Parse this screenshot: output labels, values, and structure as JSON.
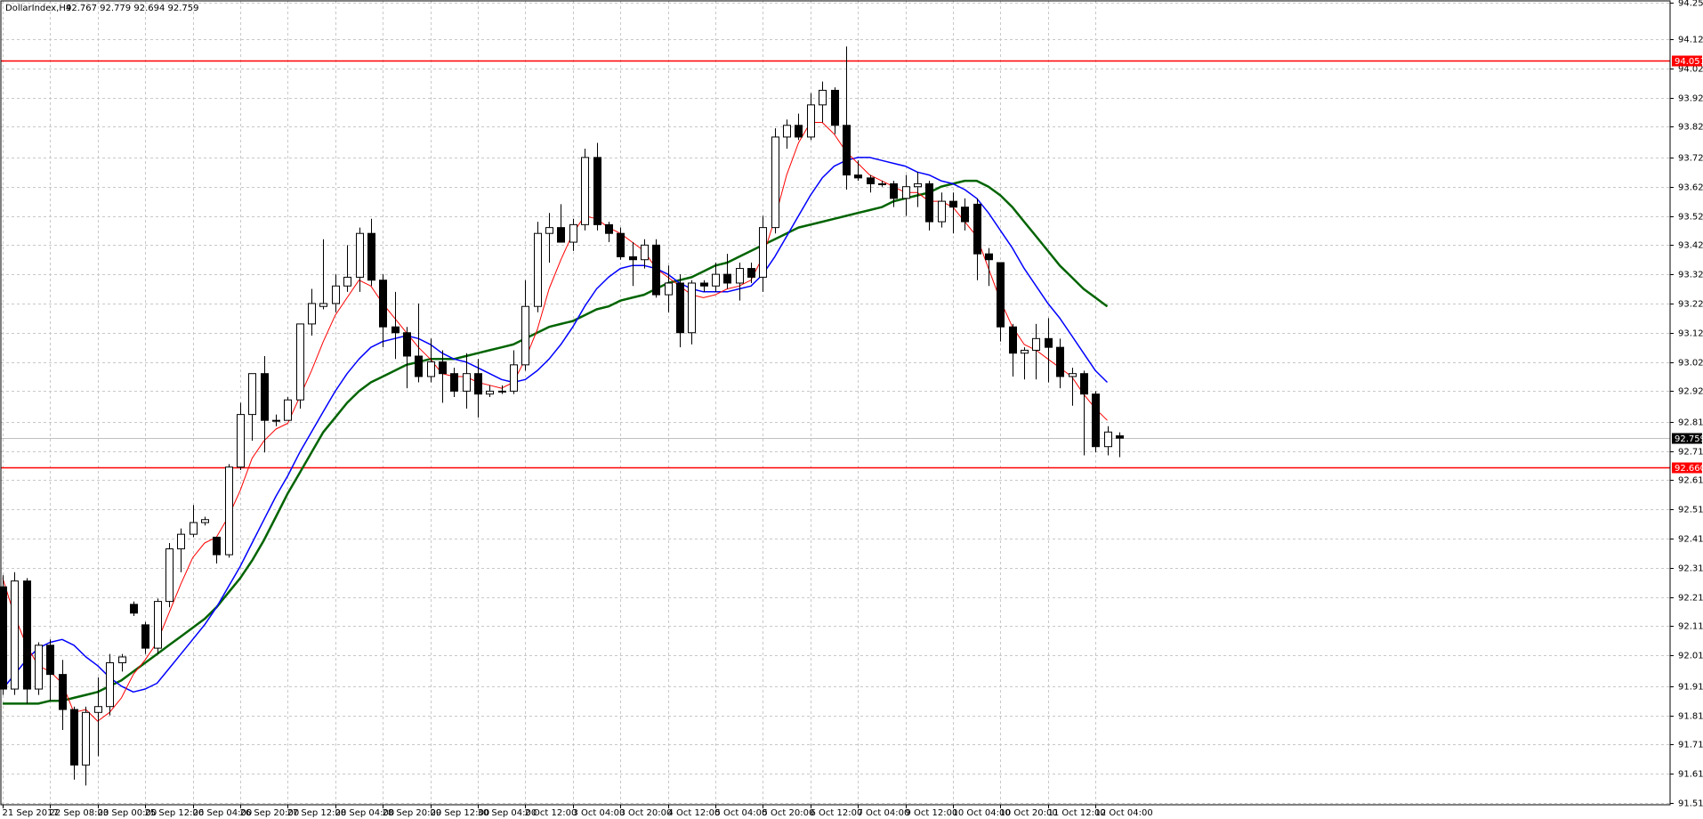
{
  "header": {
    "symbol": "DollarIndex,H4",
    "ohlc": "92.767 92.779 92.694 92.759"
  },
  "colors": {
    "background": "#ffffff",
    "grid": "#c8c8c8",
    "bull_body": "#ffffff",
    "bear_body": "#000000",
    "candle_outline": "#000000",
    "ma_fast": "#ff0000",
    "ma_mid": "#0000ff",
    "ma_slow": "#006400",
    "hline": "#ff0000",
    "current_line": "#c0c0c0"
  },
  "chart_data": {
    "type": "candlestick",
    "symbol": "DollarIndex",
    "timeframe": "H4",
    "ylim": [
      91.51,
      94.25
    ],
    "grid": true,
    "y_ticks": [
      "94.250",
      "94.125",
      "94.025",
      "93.925",
      "93.825",
      "93.720",
      "93.620",
      "93.520",
      "93.420",
      "93.320",
      "93.220",
      "93.120",
      "93.020",
      "92.920",
      "92.815",
      "92.715",
      "92.615",
      "92.515",
      "92.415",
      "92.315",
      "92.215",
      "92.115",
      "92.015",
      "91.910",
      "91.810",
      "91.710",
      "91.610",
      "91.510"
    ],
    "x_ticks": [
      {
        "index": 0,
        "label": "21 Sep 2017"
      },
      {
        "index": 4,
        "label": "22 Sep 08:00"
      },
      {
        "index": 8,
        "label": "23 Sep 00:00"
      },
      {
        "index": 12,
        "label": "25 Sep 12:00"
      },
      {
        "index": 16,
        "label": "26 Sep 04:00"
      },
      {
        "index": 20,
        "label": "26 Sep 20:00"
      },
      {
        "index": 24,
        "label": "27 Sep 12:00"
      },
      {
        "index": 28,
        "label": "28 Sep 04:00"
      },
      {
        "index": 32,
        "label": "28 Sep 20:00"
      },
      {
        "index": 36,
        "label": "29 Sep 12:00"
      },
      {
        "index": 40,
        "label": "30 Sep 04:00"
      },
      {
        "index": 44,
        "label": "2 Oct 12:00"
      },
      {
        "index": 48,
        "label": "3 Oct 04:00"
      },
      {
        "index": 52,
        "label": "3 Oct 20:00"
      },
      {
        "index": 56,
        "label": "4 Oct 12:00"
      },
      {
        "index": 60,
        "label": "5 Oct 04:00"
      },
      {
        "index": 64,
        "label": "5 Oct 20:00"
      },
      {
        "index": 68,
        "label": "6 Oct 12:00"
      },
      {
        "index": 72,
        "label": "7 Oct 04:00"
      },
      {
        "index": 76,
        "label": "9 Oct 12:00"
      },
      {
        "index": 80,
        "label": "10 Oct 04:00"
      },
      {
        "index": 84,
        "label": "10 Oct 20:00"
      },
      {
        "index": 88,
        "label": "11 Oct 12:00"
      },
      {
        "index": 92,
        "label": "12 Oct 04:00"
      }
    ],
    "candles": [
      [
        92.25,
        92.29,
        91.88,
        91.9
      ],
      [
        91.9,
        92.3,
        91.88,
        92.27
      ],
      [
        92.27,
        92.28,
        91.85,
        91.9
      ],
      [
        91.9,
        92.06,
        91.88,
        92.05
      ],
      [
        92.05,
        92.07,
        91.86,
        91.95
      ],
      [
        91.95,
        92.0,
        91.76,
        91.83
      ],
      [
        91.83,
        91.84,
        91.59,
        91.64
      ],
      [
        91.64,
        91.84,
        91.57,
        91.82
      ],
      [
        91.82,
        91.94,
        91.67,
        91.84
      ],
      [
        91.84,
        92.02,
        91.81,
        91.99
      ],
      [
        91.99,
        92.02,
        91.96,
        92.01
      ],
      [
        92.19,
        92.2,
        92.15,
        92.16
      ],
      [
        92.12,
        92.13,
        92.02,
        92.04
      ],
      [
        92.04,
        92.21,
        92.02,
        92.2
      ],
      [
        92.2,
        92.4,
        92.18,
        92.38
      ],
      [
        92.38,
        92.45,
        92.3,
        92.43
      ],
      [
        92.43,
        92.53,
        92.42,
        92.47
      ],
      [
        92.47,
        92.49,
        92.46,
        92.48
      ],
      [
        92.42,
        92.42,
        92.33,
        92.36
      ],
      [
        92.36,
        92.67,
        92.35,
        92.66
      ],
      [
        92.66,
        92.88,
        92.65,
        92.84
      ],
      [
        92.84,
        92.96,
        92.75,
        92.98
      ],
      [
        92.98,
        93.04,
        92.71,
        92.82
      ],
      [
        92.82,
        92.84,
        92.8,
        92.82
      ],
      [
        92.82,
        92.9,
        92.82,
        92.89
      ],
      [
        92.89,
        93.15,
        92.86,
        93.15
      ],
      [
        93.15,
        93.27,
        93.11,
        93.22
      ],
      [
        93.21,
        93.44,
        93.2,
        93.22
      ],
      [
        93.22,
        93.32,
        93.19,
        93.28
      ],
      [
        93.28,
        93.42,
        93.26,
        93.31
      ],
      [
        93.31,
        93.48,
        93.26,
        93.46
      ],
      [
        93.46,
        93.51,
        93.28,
        93.3
      ],
      [
        93.3,
        93.32,
        93.07,
        93.14
      ],
      [
        93.14,
        93.26,
        93.03,
        93.12
      ],
      [
        93.12,
        93.14,
        92.93,
        93.04
      ],
      [
        93.04,
        93.22,
        92.95,
        92.97
      ],
      [
        92.97,
        93.1,
        92.95,
        93.02
      ],
      [
        93.02,
        93.06,
        92.88,
        92.98
      ],
      [
        92.98,
        93.0,
        92.9,
        92.92
      ],
      [
        92.92,
        93.05,
        92.86,
        92.98
      ],
      [
        92.98,
        93.03,
        92.83,
        92.91
      ],
      [
        92.91,
        92.94,
        92.9,
        92.92
      ],
      [
        92.92,
        92.94,
        92.91,
        92.92
      ],
      [
        92.92,
        93.06,
        92.91,
        93.01
      ],
      [
        93.01,
        93.3,
        92.99,
        93.21
      ],
      [
        93.21,
        93.5,
        93.19,
        93.46
      ],
      [
        93.46,
        93.53,
        93.36,
        93.48
      ],
      [
        93.48,
        93.56,
        93.44,
        93.43
      ],
      [
        93.43,
        93.51,
        93.4,
        93.49
      ],
      [
        93.49,
        93.75,
        93.47,
        93.72
      ],
      [
        93.72,
        93.77,
        93.47,
        93.49
      ],
      [
        93.49,
        93.5,
        93.43,
        93.46
      ],
      [
        93.46,
        93.48,
        93.37,
        93.38
      ],
      [
        93.38,
        93.43,
        93.28,
        93.37
      ],
      [
        93.37,
        93.44,
        93.34,
        93.42
      ],
      [
        93.42,
        93.44,
        93.24,
        93.25
      ],
      [
        93.25,
        93.35,
        93.19,
        93.29
      ],
      [
        93.29,
        93.32,
        93.07,
        93.12
      ],
      [
        93.12,
        93.3,
        93.08,
        93.29
      ],
      [
        93.29,
        93.3,
        93.26,
        93.28
      ],
      [
        93.28,
        93.36,
        93.26,
        93.32
      ],
      [
        93.32,
        93.39,
        93.27,
        93.29
      ],
      [
        93.29,
        93.36,
        93.23,
        93.34
      ],
      [
        93.34,
        93.36,
        93.29,
        93.31
      ],
      [
        93.31,
        93.52,
        93.26,
        93.48
      ],
      [
        93.48,
        93.82,
        93.46,
        93.79
      ],
      [
        93.79,
        93.85,
        93.75,
        93.83
      ],
      [
        93.83,
        93.87,
        93.78,
        93.79
      ],
      [
        93.79,
        93.94,
        93.78,
        93.9
      ],
      [
        93.9,
        93.98,
        93.84,
        93.95
      ],
      [
        93.95,
        93.96,
        93.8,
        93.83
      ],
      [
        93.83,
        94.1,
        93.61,
        93.66
      ],
      [
        93.66,
        93.71,
        93.64,
        93.65
      ],
      [
        93.65,
        93.66,
        93.6,
        93.63
      ],
      [
        93.63,
        93.64,
        93.62,
        93.63
      ],
      [
        93.63,
        93.64,
        93.55,
        93.58
      ],
      [
        93.58,
        93.66,
        93.52,
        93.62
      ],
      [
        93.62,
        93.67,
        93.55,
        93.63
      ],
      [
        93.63,
        93.64,
        93.47,
        93.5
      ],
      [
        93.5,
        93.6,
        93.48,
        93.57
      ],
      [
        93.57,
        93.6,
        93.46,
        93.55
      ],
      [
        93.55,
        93.58,
        93.47,
        93.5
      ],
      [
        93.56,
        93.58,
        93.3,
        93.39
      ],
      [
        93.39,
        93.41,
        93.28,
        93.37
      ],
      [
        93.36,
        93.36,
        93.09,
        93.14
      ],
      [
        93.14,
        93.15,
        92.97,
        93.05
      ],
      [
        93.05,
        93.07,
        92.96,
        93.06
      ],
      [
        93.06,
        93.15,
        92.96,
        93.1
      ],
      [
        93.1,
        93.17,
        92.95,
        93.07
      ],
      [
        93.07,
        93.1,
        92.93,
        92.97
      ],
      [
        92.97,
        93.0,
        92.87,
        92.98
      ],
      [
        92.98,
        92.99,
        92.7,
        92.91
      ],
      [
        92.91,
        92.92,
        92.71,
        92.73
      ],
      [
        92.73,
        92.8,
        92.7,
        92.78
      ],
      [
        92.767,
        92.779,
        92.694,
        92.759
      ]
    ],
    "ma_fast_values": [
      92.28,
      92.15,
      92.05,
      91.98,
      91.96,
      91.92,
      91.82,
      91.83,
      91.79,
      91.82,
      91.87,
      91.95,
      92.0,
      92.06,
      92.16,
      92.26,
      92.35,
      92.4,
      92.42,
      92.49,
      92.58,
      92.69,
      92.75,
      92.79,
      92.81,
      92.9,
      92.99,
      93.09,
      93.18,
      93.24,
      93.3,
      93.28,
      93.22,
      93.17,
      93.12,
      93.07,
      93.03,
      92.98,
      92.97,
      92.97,
      92.95,
      92.94,
      92.93,
      92.95,
      93.03,
      93.13,
      93.27,
      93.37,
      93.46,
      93.52,
      93.51,
      93.48,
      93.46,
      93.43,
      93.4,
      93.34,
      93.31,
      93.28,
      93.25,
      93.24,
      93.25,
      93.27,
      93.28,
      93.3,
      93.38,
      93.51,
      93.66,
      93.77,
      93.84,
      93.84,
      93.8,
      93.74,
      93.7,
      93.66,
      93.64,
      93.62,
      93.6,
      93.6,
      93.57,
      93.57,
      93.55,
      93.5,
      93.45,
      93.34,
      93.23,
      93.14,
      93.08,
      93.06,
      93.03,
      93.0,
      92.97,
      92.91,
      92.86,
      92.82
    ],
    "ma_mid_values": [
      91.9,
      91.95,
      92.0,
      92.04,
      92.06,
      92.07,
      92.05,
      92.01,
      91.98,
      91.94,
      91.91,
      91.89,
      91.9,
      91.92,
      91.97,
      92.02,
      92.07,
      92.12,
      92.18,
      92.25,
      92.32,
      92.4,
      92.48,
      92.56,
      92.63,
      92.71,
      92.78,
      92.85,
      92.92,
      92.98,
      93.03,
      93.07,
      93.09,
      93.1,
      93.11,
      93.1,
      93.08,
      93.05,
      93.03,
      93.02,
      93.0,
      92.98,
      92.96,
      92.95,
      92.96,
      92.99,
      93.03,
      93.08,
      93.14,
      93.21,
      93.27,
      93.31,
      93.34,
      93.35,
      93.35,
      93.34,
      93.32,
      93.29,
      93.27,
      93.26,
      93.26,
      93.26,
      93.27,
      93.28,
      93.32,
      93.38,
      93.45,
      93.52,
      93.59,
      93.65,
      93.69,
      93.71,
      93.72,
      93.72,
      93.71,
      93.7,
      93.69,
      93.67,
      93.66,
      93.64,
      93.63,
      93.61,
      93.58,
      93.53,
      93.47,
      93.41,
      93.34,
      93.28,
      93.22,
      93.17,
      93.11,
      93.05,
      92.99,
      92.95
    ],
    "ma_slow_values": [
      91.85,
      91.85,
      91.85,
      91.85,
      91.86,
      91.86,
      91.87,
      91.88,
      91.89,
      91.91,
      91.93,
      91.96,
      91.99,
      92.02,
      92.05,
      92.08,
      92.11,
      92.14,
      92.18,
      92.23,
      92.28,
      92.34,
      92.41,
      92.49,
      92.57,
      92.64,
      92.71,
      92.78,
      92.83,
      92.88,
      92.92,
      92.95,
      92.97,
      92.99,
      93.01,
      93.02,
      93.03,
      93.03,
      93.03,
      93.04,
      93.05,
      93.06,
      93.07,
      93.08,
      93.1,
      93.12,
      93.14,
      93.15,
      93.16,
      93.18,
      93.2,
      93.21,
      93.23,
      93.24,
      93.25,
      93.27,
      93.29,
      93.3,
      93.31,
      93.33,
      93.35,
      93.36,
      93.38,
      93.4,
      93.42,
      93.44,
      93.46,
      93.48,
      93.49,
      93.5,
      93.51,
      93.52,
      93.53,
      93.54,
      93.55,
      93.57,
      93.58,
      93.59,
      93.6,
      93.62,
      93.63,
      93.64,
      93.64,
      93.62,
      93.59,
      93.55,
      93.5,
      93.45,
      93.4,
      93.35,
      93.31,
      93.27,
      93.24,
      93.21
    ],
    "ma_slow_last_index": 93,
    "horizontal_lines": [
      {
        "price": 94.051,
        "label": "94.051",
        "color": "#ff0000"
      },
      {
        "price": 92.66,
        "label": "92.660",
        "color": "#ff0000"
      }
    ],
    "current_price": {
      "price": 92.759,
      "label": "92.759"
    }
  }
}
